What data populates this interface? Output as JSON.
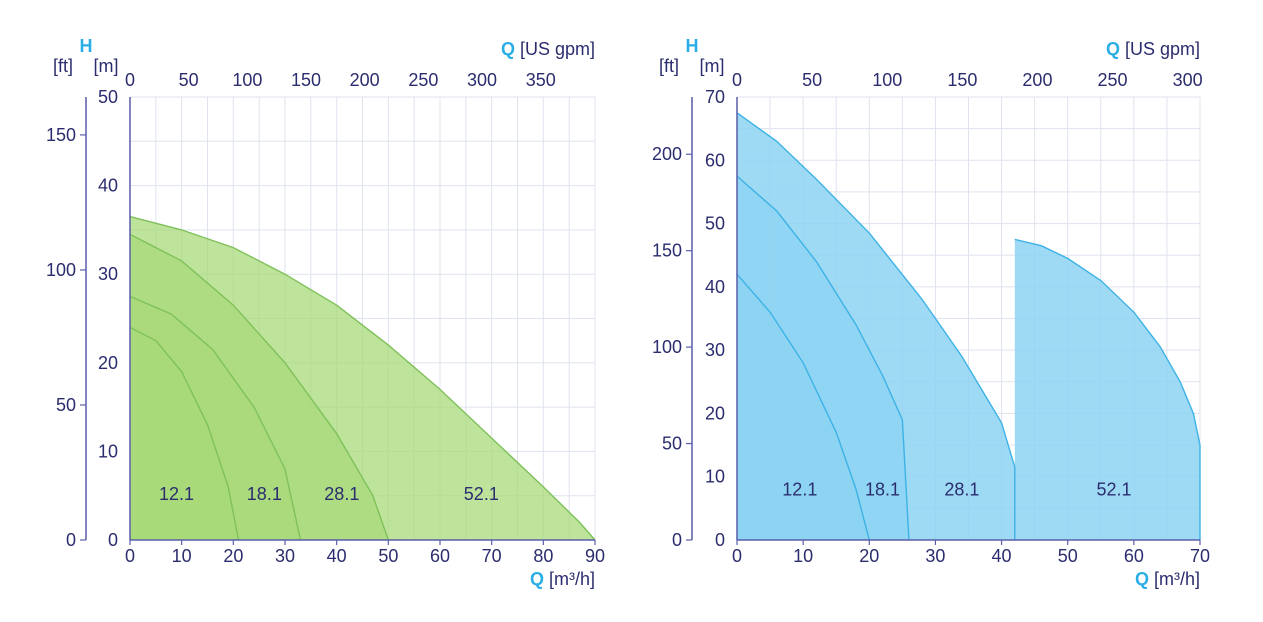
{
  "colors": {
    "axis": "#5a5fa8",
    "text": "#2b2d6e",
    "accent": "#2aaee6",
    "green_fill": "#a8d97a",
    "green_line": "#7fc15a",
    "blue_fill": "#8dd3f2",
    "blue_line": "#3db2e6"
  },
  "chart_data": [
    {
      "type": "area",
      "title": "",
      "y_title": "H",
      "y_unit_left": "[ft]",
      "y_unit_right": "[m]",
      "x_bottom_title": "Q",
      "x_bottom_unit": "[m³/h]",
      "x_top_title": "Q",
      "x_top_unit": "[US gpm]",
      "xlim": [
        0,
        90
      ],
      "ylim": [
        0,
        50
      ],
      "grid": true,
      "x_ticks": [
        0,
        10,
        20,
        30,
        40,
        50,
        60,
        70,
        80,
        90
      ],
      "y_ticks_m": [
        0,
        10,
        20,
        30,
        40,
        50
      ],
      "y_ticks_ft": [
        0,
        50,
        100,
        150
      ],
      "x_top_ticks": [
        0,
        50,
        100,
        150,
        200,
        250,
        300,
        350
      ],
      "series": [
        {
          "name": "12.1",
          "label_at": [
            9,
            4.5
          ],
          "points": [
            [
              0,
              24
            ],
            [
              5,
              22.5
            ],
            [
              10,
              19
            ],
            [
              15,
              13
            ],
            [
              19,
              6
            ],
            [
              21,
              0
            ]
          ]
        },
        {
          "name": "18.1",
          "label_at": [
            26,
            4.5
          ],
          "points": [
            [
              0,
              27.5
            ],
            [
              8,
              25.5
            ],
            [
              16,
              21.5
            ],
            [
              24,
              15
            ],
            [
              30,
              8
            ],
            [
              33,
              0
            ]
          ]
        },
        {
          "name": "28.1",
          "label_at": [
            41,
            4.5
          ],
          "points": [
            [
              0,
              34.5
            ],
            [
              10,
              31.5
            ],
            [
              20,
              26.5
            ],
            [
              30,
              20
            ],
            [
              40,
              12
            ],
            [
              47,
              5
            ],
            [
              50,
              0
            ]
          ]
        },
        {
          "name": "52.1",
          "label_at": [
            68,
            4.5
          ],
          "points": [
            [
              0,
              36.5
            ],
            [
              10,
              35
            ],
            [
              20,
              33
            ],
            [
              30,
              30
            ],
            [
              40,
              26.5
            ],
            [
              50,
              22
            ],
            [
              60,
              17
            ],
            [
              70,
              11.5
            ],
            [
              80,
              6
            ],
            [
              87,
              2
            ],
            [
              90,
              0
            ]
          ]
        }
      ]
    },
    {
      "type": "area",
      "title": "",
      "y_title": "H",
      "y_unit_left": "[ft]",
      "y_unit_right": "[m]",
      "x_bottom_title": "Q",
      "x_bottom_unit": "[m³/h]",
      "x_top_title": "Q",
      "x_top_unit": "[US gpm]",
      "xlim": [
        0,
        70
      ],
      "ylim": [
        0,
        70
      ],
      "grid": true,
      "x_ticks": [
        0,
        10,
        20,
        30,
        40,
        50,
        60,
        70
      ],
      "y_ticks_m": [
        0,
        10,
        20,
        30,
        40,
        50,
        60,
        70
      ],
      "y_ticks_ft": [
        0,
        50,
        100,
        150,
        200
      ],
      "x_top_ticks": [
        0,
        50,
        100,
        150,
        200,
        250,
        300
      ],
      "series": [
        {
          "name": "12.1",
          "label_at": [
            9.5,
            7
          ],
          "points": [
            [
              0,
              42
            ],
            [
              5,
              36
            ],
            [
              10,
              28
            ],
            [
              15,
              17
            ],
            [
              18,
              8
            ],
            [
              20,
              0
            ]
          ]
        },
        {
          "name": "18.1",
          "label_at": [
            22,
            7
          ],
          "points": [
            [
              0,
              57.5
            ],
            [
              6,
              52
            ],
            [
              12,
              44
            ],
            [
              18,
              34
            ],
            [
              22,
              26
            ],
            [
              25,
              19
            ],
            [
              26,
              0
            ]
          ]
        },
        {
          "name": "28.1",
          "label_at": [
            34,
            7
          ],
          "points": [
            [
              0,
              67.5
            ],
            [
              6,
              63
            ],
            [
              12,
              57
            ],
            [
              20,
              48.5
            ],
            [
              28,
              38
            ],
            [
              34,
              29
            ],
            [
              38,
              22
            ],
            [
              40,
              18.5
            ],
            [
              42,
              11.5
            ],
            [
              42,
              0
            ]
          ]
        },
        {
          "name": "52.1",
          "label_at": [
            57,
            7
          ],
          "points": [
            [
              42,
              47.5
            ],
            [
              46,
              46.5
            ],
            [
              50,
              44.5
            ],
            [
              55,
              41
            ],
            [
              60,
              36
            ],
            [
              64,
              30.5
            ],
            [
              67,
              25
            ],
            [
              69,
              20
            ],
            [
              70,
              15
            ],
            [
              70,
              0
            ]
          ]
        }
      ]
    }
  ]
}
